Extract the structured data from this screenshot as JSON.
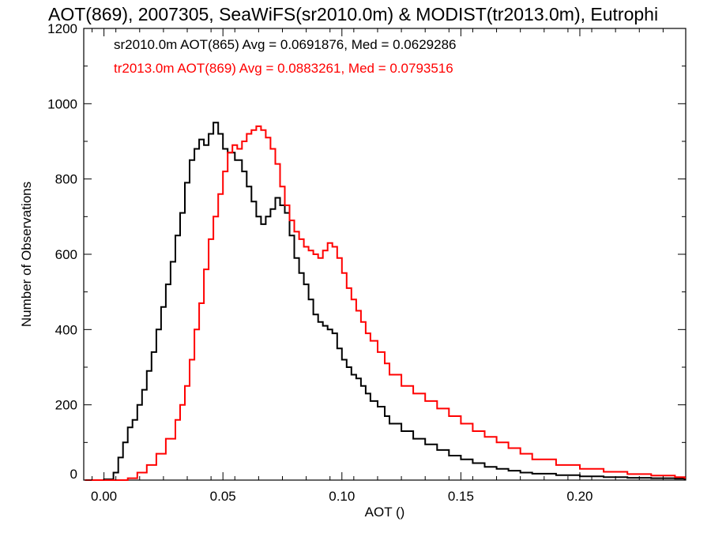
{
  "title": "AOT(869), 2007305, SeaWiFS(sr2010.0m) & MODIST(tr2013.0m), Eutrophi",
  "chart_data": {
    "type": "line",
    "title": "AOT(869), 2007305, SeaWiFS(sr2010.0m) & MODIST(tr2013.0m), Eutrophi",
    "xlabel": "AOT ()",
    "ylabel": "Number of Observations",
    "xlim": [
      -0.0085,
      0.2445
    ],
    "ylim": [
      0,
      1200
    ],
    "x_ticks": [
      {
        "value": 0.0,
        "label": "0.00"
      },
      {
        "value": 0.05,
        "label": "0.05"
      },
      {
        "value": 0.1,
        "label": "0.10"
      },
      {
        "value": 0.15,
        "label": "0.15"
      },
      {
        "value": 0.2,
        "label": "0.20"
      }
    ],
    "y_ticks": [
      {
        "value": 0,
        "label": "0"
      },
      {
        "value": 200,
        "label": "200"
      },
      {
        "value": 400,
        "label": "400"
      },
      {
        "value": 600,
        "label": "600"
      },
      {
        "value": 800,
        "label": "800"
      },
      {
        "value": 1000,
        "label": "1000"
      },
      {
        "value": 1200,
        "label": "1200"
      }
    ],
    "grid": false,
    "legend_position": "top-left",
    "series": [
      {
        "name": "sr2010.0m AOT(865) Avg = 0.0691876, Med = 0.0629286",
        "color": "#000000",
        "x": [
          -0.008,
          0.0,
          0.004,
          0.006,
          0.008,
          0.01,
          0.012,
          0.014,
          0.016,
          0.018,
          0.02,
          0.022,
          0.024,
          0.026,
          0.028,
          0.03,
          0.032,
          0.034,
          0.036,
          0.038,
          0.04,
          0.042,
          0.044,
          0.046,
          0.048,
          0.05,
          0.052,
          0.055,
          0.058,
          0.06,
          0.062,
          0.064,
          0.066,
          0.068,
          0.07,
          0.072,
          0.074,
          0.076,
          0.078,
          0.08,
          0.082,
          0.084,
          0.086,
          0.088,
          0.09,
          0.092,
          0.094,
          0.096,
          0.098,
          0.1,
          0.102,
          0.104,
          0.106,
          0.108,
          0.11,
          0.112,
          0.115,
          0.118,
          0.12,
          0.125,
          0.13,
          0.135,
          0.14,
          0.145,
          0.15,
          0.155,
          0.16,
          0.165,
          0.17,
          0.175,
          0.18,
          0.19,
          0.2,
          0.21,
          0.22,
          0.23,
          0.24,
          0.244
        ],
        "y": [
          0,
          2,
          20,
          60,
          100,
          140,
          160,
          200,
          240,
          290,
          340,
          400,
          460,
          520,
          580,
          650,
          710,
          790,
          850,
          880,
          905,
          890,
          920,
          950,
          920,
          880,
          870,
          850,
          820,
          780,
          740,
          700,
          680,
          700,
          720,
          750,
          730,
          710,
          650,
          590,
          550,
          520,
          480,
          440,
          420,
          410,
          400,
          390,
          350,
          320,
          300,
          280,
          270,
          250,
          230,
          210,
          195,
          170,
          150,
          130,
          110,
          95,
          80,
          65,
          55,
          45,
          35,
          30,
          25,
          20,
          17,
          13,
          10,
          8,
          6,
          5,
          4,
          3
        ]
      },
      {
        "name": "tr2013.0m AOT(869) Avg = 0.0883261, Med = 0.0793516",
        "color": "#ff0000",
        "x": [
          -0.008,
          0.01,
          0.014,
          0.018,
          0.022,
          0.026,
          0.03,
          0.032,
          0.034,
          0.036,
          0.038,
          0.04,
          0.042,
          0.044,
          0.046,
          0.048,
          0.05,
          0.052,
          0.054,
          0.056,
          0.058,
          0.06,
          0.062,
          0.064,
          0.066,
          0.068,
          0.07,
          0.072,
          0.074,
          0.076,
          0.078,
          0.08,
          0.082,
          0.084,
          0.086,
          0.088,
          0.09,
          0.092,
          0.094,
          0.096,
          0.098,
          0.1,
          0.102,
          0.104,
          0.106,
          0.108,
          0.11,
          0.112,
          0.115,
          0.118,
          0.12,
          0.125,
          0.13,
          0.135,
          0.14,
          0.145,
          0.15,
          0.155,
          0.16,
          0.165,
          0.17,
          0.175,
          0.18,
          0.19,
          0.2,
          0.21,
          0.22,
          0.23,
          0.24,
          0.244
        ],
        "y": [
          0,
          5,
          20,
          40,
          70,
          110,
          160,
          200,
          250,
          320,
          400,
          470,
          560,
          640,
          700,
          760,
          820,
          870,
          890,
          880,
          900,
          920,
          930,
          940,
          930,
          910,
          880,
          840,
          780,
          730,
          690,
          660,
          640,
          620,
          610,
          600,
          590,
          610,
          630,
          620,
          590,
          550,
          510,
          480,
          450,
          420,
          390,
          370,
          340,
          310,
          280,
          250,
          230,
          210,
          190,
          170,
          150,
          130,
          115,
          100,
          85,
          70,
          55,
          40,
          30,
          22,
          16,
          12,
          8,
          6
        ]
      }
    ]
  }
}
